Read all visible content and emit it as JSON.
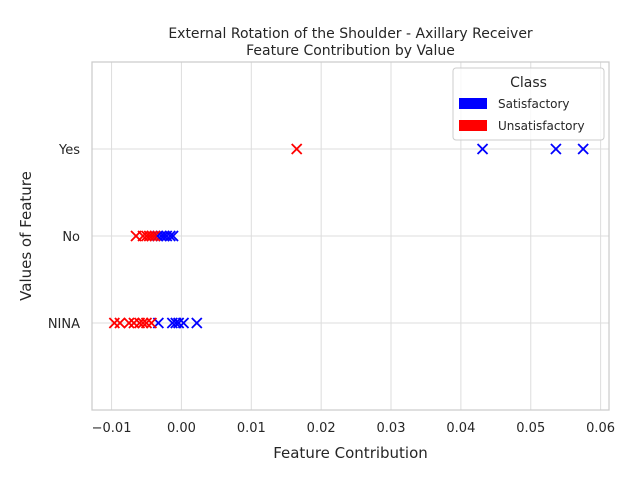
{
  "chart_data": {
    "type": "scatter",
    "title": "External Rotation of the Shoulder - Axillary Receiver",
    "subtitle": "Feature Contribution by Value",
    "xlabel": "Feature Contribution",
    "ylabel": "Values of Feature",
    "xlim": [
      -0.0128,
      0.0612
    ],
    "xticks": [
      -0.01,
      0.0,
      0.01,
      0.02,
      0.03,
      0.04,
      0.05,
      0.06
    ],
    "xtick_labels": [
      "−0.01",
      "0.00",
      "0.01",
      "0.02",
      "0.03",
      "0.04",
      "0.05",
      "0.06"
    ],
    "categories": [
      "NINA",
      "No",
      "Yes"
    ],
    "grid": true,
    "marker": "x",
    "legend": {
      "title": "Class",
      "placement": "top-right",
      "entries": [
        {
          "name": "Satisfactory",
          "color": "#0000ff"
        },
        {
          "name": "Unsatisfactory",
          "color": "#ff0000"
        }
      ]
    },
    "series": [
      {
        "name": "Satisfactory",
        "color": "#0000ff",
        "points": [
          {
            "x": 0.0431,
            "y": "Yes"
          },
          {
            "x": 0.0536,
            "y": "Yes"
          },
          {
            "x": 0.0575,
            "y": "Yes"
          },
          {
            "x": -0.0034,
            "y": "No"
          },
          {
            "x": -0.0029,
            "y": "No"
          },
          {
            "x": -0.0025,
            "y": "No"
          },
          {
            "x": -0.0021,
            "y": "No"
          },
          {
            "x": -0.0016,
            "y": "No"
          },
          {
            "x": -0.0012,
            "y": "No"
          },
          {
            "x": -0.0033,
            "y": "NINA"
          },
          {
            "x": -0.0013,
            "y": "NINA"
          },
          {
            "x": -0.0008,
            "y": "NINA"
          },
          {
            "x": -0.0004,
            "y": "NINA"
          },
          {
            "x": 0.0003,
            "y": "NINA"
          },
          {
            "x": 0.0022,
            "y": "NINA"
          }
        ]
      },
      {
        "name": "Unsatisfactory",
        "color": "#ff0000",
        "points": [
          {
            "x": 0.0165,
            "y": "Yes"
          },
          {
            "x": -0.0065,
            "y": "No"
          },
          {
            "x": -0.0055,
            "y": "No"
          },
          {
            "x": -0.005,
            "y": "No"
          },
          {
            "x": -0.0046,
            "y": "No"
          },
          {
            "x": -0.0042,
            "y": "No"
          },
          {
            "x": -0.0038,
            "y": "No"
          },
          {
            "x": -0.0096,
            "y": "NINA"
          },
          {
            "x": -0.0088,
            "y": "NINA"
          },
          {
            "x": -0.0075,
            "y": "NINA"
          },
          {
            "x": -0.0068,
            "y": "NINA"
          },
          {
            "x": -0.006,
            "y": "NINA"
          },
          {
            "x": -0.0055,
            "y": "NINA"
          },
          {
            "x": -0.005,
            "y": "NINA"
          },
          {
            "x": -0.0043,
            "y": "NINA"
          }
        ]
      }
    ]
  }
}
